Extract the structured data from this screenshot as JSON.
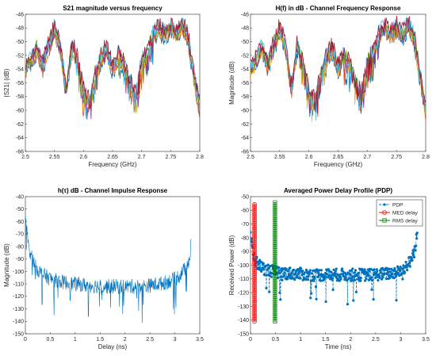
{
  "chart_data": [
    {
      "type": "line",
      "title": "S21 magnitude versus frequency",
      "xlabel": "Frequency (GHz)",
      "ylabel": "|S21| (dB)",
      "xlim": [
        2.5,
        2.8
      ],
      "ylim": [
        -66,
        -46
      ],
      "xticks": [
        2.5,
        2.55,
        2.6,
        2.65,
        2.7,
        2.75,
        2.8
      ],
      "yticks": [
        -66,
        -64,
        -62,
        -60,
        -58,
        -56,
        -54,
        -52,
        -50,
        -48,
        -46
      ],
      "xtick_labels": [
        "2.5",
        "2.55",
        "2.6",
        "2.65",
        "2.7",
        "2.75",
        "2.8"
      ],
      "ytick_labels": [
        "-66",
        "-64",
        "-62",
        "-60",
        "-58",
        "-56",
        "-54",
        "-52",
        "-50",
        "-48",
        "-46"
      ],
      "grid": false,
      "trace_colors": [
        "#0072BD",
        "#D95319",
        "#EDB120",
        "#7E2F8E",
        "#77AC30",
        "#4DBEEE",
        "#A2142F"
      ],
      "envelope": {
        "x": [
          2.5,
          2.51,
          2.52,
          2.53,
          2.54,
          2.545,
          2.55,
          2.56,
          2.57,
          2.575,
          2.58,
          2.59,
          2.6,
          2.61,
          2.62,
          2.63,
          2.64,
          2.65,
          2.66,
          2.67,
          2.68,
          2.69,
          2.7,
          2.71,
          2.72,
          2.73,
          2.74,
          2.75,
          2.76,
          2.77,
          2.78,
          2.79,
          2.8
        ],
        "y": [
          -54,
          -52.5,
          -51,
          -53.5,
          -50.5,
          -49.5,
          -48,
          -51,
          -57,
          -54,
          -50.5,
          -53,
          -57.5,
          -59,
          -55,
          -52.5,
          -51,
          -54,
          -52,
          -53.5,
          -56,
          -58,
          -53,
          -52,
          -49,
          -48,
          -49,
          -48,
          -49,
          -47.5,
          -49.5,
          -55,
          -60
        ]
      }
    },
    {
      "type": "line",
      "title": "H(f) in dB - Channel Frequency Response",
      "xlabel": "Frequency (GHz)",
      "ylabel": "Magnitude (dB)",
      "xlim": [
        2.5,
        2.8
      ],
      "ylim": [
        -66,
        -46
      ],
      "xticks": [
        2.5,
        2.55,
        2.6,
        2.65,
        2.7,
        2.75,
        2.8
      ],
      "yticks": [
        -66,
        -64,
        -62,
        -60,
        -58,
        -56,
        -54,
        -52,
        -50,
        -48,
        -46
      ],
      "xtick_labels": [
        "2.5",
        "2.55",
        "2.6",
        "2.65",
        "2.7",
        "2.75",
        "2.8"
      ],
      "ytick_labels": [
        "-66",
        "-64",
        "-62",
        "-60",
        "-58",
        "-56",
        "-54",
        "-52",
        "-50",
        "-48",
        "-46"
      ],
      "grid": false,
      "trace_colors": [
        "#0072BD",
        "#D95319",
        "#EDB120",
        "#7E2F8E",
        "#77AC30",
        "#4DBEEE",
        "#A2142F"
      ],
      "envelope": {
        "x": [
          2.5,
          2.51,
          2.52,
          2.53,
          2.54,
          2.545,
          2.55,
          2.56,
          2.57,
          2.575,
          2.58,
          2.59,
          2.6,
          2.61,
          2.62,
          2.63,
          2.64,
          2.65,
          2.66,
          2.67,
          2.68,
          2.69,
          2.7,
          2.71,
          2.72,
          2.73,
          2.74,
          2.75,
          2.76,
          2.77,
          2.78,
          2.79,
          2.8
        ],
        "y": [
          -54,
          -52.5,
          -51,
          -53.5,
          -50.5,
          -49.5,
          -48,
          -51,
          -57,
          -54,
          -50.5,
          -53,
          -57.5,
          -59,
          -55,
          -52.5,
          -51,
          -54,
          -52,
          -53.5,
          -56,
          -58,
          -53,
          -52,
          -49,
          -48,
          -49,
          -48,
          -49,
          -47.5,
          -49.5,
          -55,
          -60
        ]
      }
    },
    {
      "type": "line",
      "title": "h(τ) dB - Channel Impulse Response",
      "xlabel": "Delay (ns)",
      "ylabel": "Magnitude (dB)",
      "xlim": [
        0,
        3.5
      ],
      "ylim": [
        -150,
        -40
      ],
      "xticks": [
        0,
        0.5,
        1,
        1.5,
        2,
        2.5,
        3,
        3.5
      ],
      "yticks": [
        -150,
        -140,
        -130,
        -120,
        -110,
        -100,
        -90,
        -80,
        -70,
        -60,
        -50,
        -40
      ],
      "xtick_labels": [
        "0",
        "0.5",
        "1",
        "1.5",
        "2",
        "2.5",
        "3",
        "3.5"
      ],
      "ytick_labels": [
        "-150",
        "-140",
        "-130",
        "-120",
        "-110",
        "-100",
        "-90",
        "-80",
        "-70",
        "-60",
        "-50",
        "-40"
      ],
      "grid": false,
      "series_color": "#0072BD",
      "envelope": {
        "x": [
          0,
          0.02,
          0.05,
          0.1,
          0.2,
          0.3,
          0.5,
          0.8,
          1.2,
          1.6,
          2.0,
          2.4,
          2.8,
          3.0,
          3.1,
          3.2,
          3.3,
          3.33
        ],
        "y": [
          -55,
          -65,
          -75,
          -85,
          -96,
          -101,
          -106,
          -109,
          -111,
          -112,
          -112,
          -112,
          -109,
          -106,
          -103,
          -98,
          -90,
          -76
        ]
      }
    },
    {
      "type": "line",
      "title": "Averaged Power Delay Profile (PDP)",
      "xlabel": "Time (ns)",
      "ylabel": "Received Power (dB)",
      "xlim": [
        0,
        3.5
      ],
      "ylim": [
        -150,
        -50
      ],
      "xticks": [
        0,
        0.5,
        1,
        1.5,
        2,
        2.5,
        3,
        3.5
      ],
      "yticks": [
        -150,
        -140,
        -130,
        -120,
        -110,
        -100,
        -90,
        -80,
        -70,
        -60,
        -50
      ],
      "xtick_labels": [
        "0",
        "0.5",
        "1",
        "1.5",
        "2",
        "2.5",
        "3",
        "3.5"
      ],
      "ytick_labels": [
        "-150",
        "-140",
        "-130",
        "-120",
        "-110",
        "-100",
        "-90",
        "-80",
        "-70",
        "-60",
        "-50"
      ],
      "grid": false,
      "legend_position": "top-right",
      "series": [
        {
          "name": "PDP",
          "color": "#0072BD",
          "x": [
            0,
            0.02,
            0.05,
            0.1,
            0.2,
            0.3,
            0.5,
            0.8,
            1.2,
            1.6,
            2.0,
            2.4,
            2.8,
            3.0,
            3.1,
            3.2,
            3.3,
            3.33
          ],
          "y": [
            -75,
            -85,
            -92,
            -97,
            -101,
            -103,
            -105,
            -106,
            -107,
            -107,
            -107,
            -107,
            -106,
            -104,
            -101,
            -97,
            -87,
            -75
          ]
        },
        {
          "name": "MED delay",
          "color": "#FF0000",
          "x": 0.08,
          "y_range": [
            -141,
            -55
          ]
        },
        {
          "name": "RMS delay",
          "color": "#008000",
          "x": 0.49,
          "y_range": [
            -141,
            -54
          ]
        }
      ]
    }
  ]
}
